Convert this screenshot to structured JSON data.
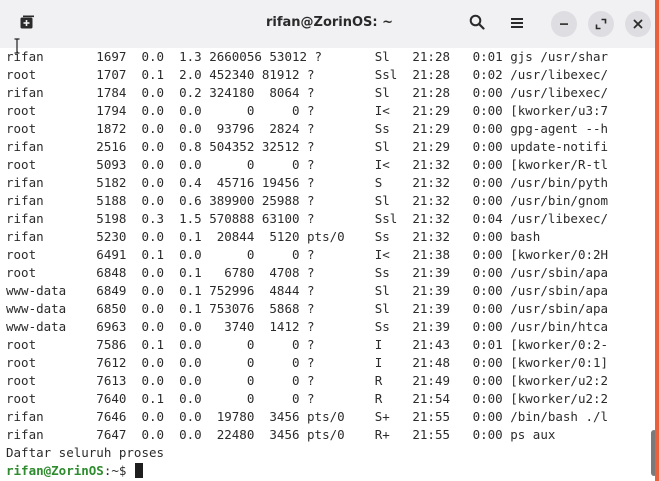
{
  "window": {
    "title": "rifan@ZorinOS: ~",
    "accent": "#e8603c"
  },
  "icons": {
    "new_tab": "new-tab-icon",
    "search": "search-icon",
    "menu": "hamburger-menu-icon",
    "minimize": "minimize-icon",
    "maximize": "maximize-icon",
    "close": "close-icon"
  },
  "terminal": {
    "lines": [
      "rifan       1697  0.0  1.3 2660056 53012 ?       Sl   21:28   0:01 gjs /usr/shar",
      "root        1707  0.1  2.0 452340 81912 ?        Ssl  21:28   0:02 /usr/libexec/",
      "rifan       1784  0.0  0.2 324180  8064 ?        Sl   21:28   0:00 /usr/libexec/",
      "root        1794  0.0  0.0      0     0 ?        I<   21:29   0:00 [kworker/u3:7",
      "root        1872  0.0  0.0  93796  2824 ?        Ss   21:29   0:00 gpg-agent --h",
      "rifan       2516  0.0  0.8 504352 32512 ?        Sl   21:29   0:00 update-notifi",
      "root        5093  0.0  0.0      0     0 ?        I<   21:32   0:00 [kworker/R-tl",
      "rifan       5182  0.0  0.4  45716 19456 ?        S    21:32   0:00 /usr/bin/pyth",
      "rifan       5188  0.0  0.6 389900 25988 ?        Sl   21:32   0:00 /usr/bin/gnom",
      "rifan       5198  0.3  1.5 570888 63100 ?        Ssl  21:32   0:04 /usr/libexec/",
      "rifan       5230  0.0  0.1  20844  5120 pts/0    Ss   21:32   0:00 bash",
      "root        6491  0.1  0.0      0     0 ?        I<   21:38   0:00 [kworker/0:2H",
      "root        6848  0.0  0.1   6780  4708 ?        Ss   21:39   0:00 /usr/sbin/apa",
      "www-data    6849  0.0  0.1 752996  4844 ?        Sl   21:39   0:00 /usr/sbin/apa",
      "www-data    6850  0.0  0.1 753076  5868 ?        Sl   21:39   0:00 /usr/sbin/apa",
      "www-data    6963  0.0  0.0   3740  1412 ?        Ss   21:39   0:00 /usr/bin/htca",
      "root        7586  0.1  0.0      0     0 ?        I    21:43   0:01 [kworker/0:2-",
      "root        7612  0.0  0.0      0     0 ?        I    21:48   0:00 [kworker/0:1]",
      "root        7613  0.0  0.0      0     0 ?        R    21:49   0:00 [kworker/u2:2",
      "root        7640  0.1  0.0      0     0 ?        R    21:54   0:00 [kworker/u2:2",
      "rifan       7646  0.0  0.0  19780  3456 pts/0    S+   21:55   0:00 /bin/bash ./l",
      "rifan       7647  0.0  0.0  22480  3456 pts/0    R+   21:55   0:00 ps aux",
      "Daftar seluruh proses"
    ],
    "prompt_user": "rifan@ZorinOS",
    "prompt_path": ":~$ "
  },
  "scroll_position": 0.95
}
